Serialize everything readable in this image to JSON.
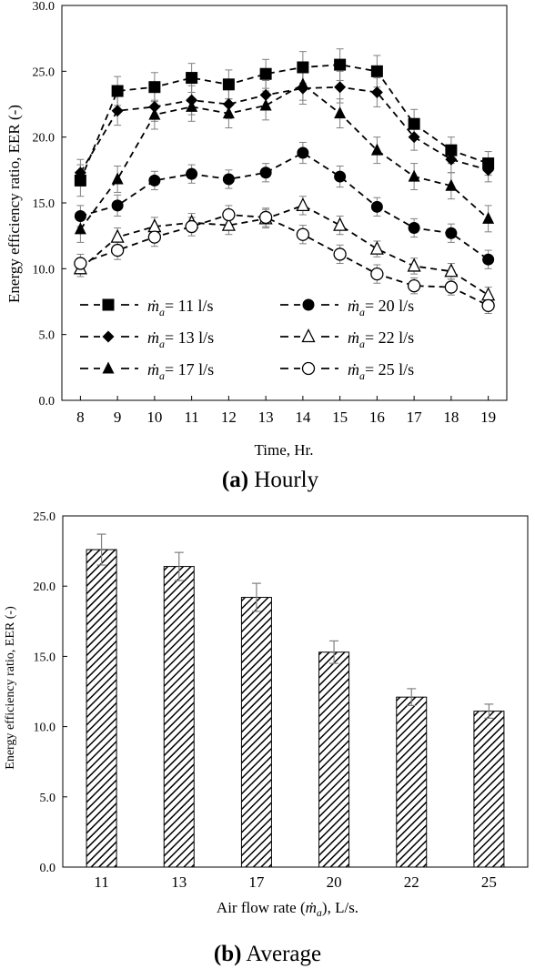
{
  "chart_data": [
    {
      "type": "line",
      "panel": "a",
      "caption_tag": "(a)",
      "caption_text": "Hourly",
      "xlabel": "Time, Hr.",
      "ylabel": "Energy efficiency ratio, EER (-)",
      "x": [
        8,
        9,
        10,
        11,
        12,
        13,
        14,
        15,
        16,
        17,
        18,
        19
      ],
      "xlim": [
        7.5,
        19.5
      ],
      "ylim": [
        0,
        30
      ],
      "y_ticks": [
        "0.0",
        "5.0",
        "10.0",
        "15.0",
        "20.0",
        "25.0",
        "30.0"
      ],
      "x_ticks": [
        "8",
        "9",
        "10",
        "11",
        "12",
        "13",
        "14",
        "15",
        "16",
        "17",
        "18",
        "19"
      ],
      "grid": false,
      "legend_position": "lower-center",
      "series": [
        {
          "name": "= 11 l/s",
          "marker": "square",
          "values": [
            16.7,
            23.5,
            23.8,
            24.5,
            24.0,
            24.8,
            25.3,
            25.5,
            25.0,
            21.0,
            19.0,
            18.0
          ],
          "error": [
            1.2,
            1.1,
            1.1,
            1.1,
            1.1,
            1.1,
            1.2,
            1.2,
            1.2,
            1.1,
            1.0,
            0.9
          ]
        },
        {
          "name": "= 13 l/s",
          "marker": "diamond",
          "values": [
            17.3,
            22.0,
            22.3,
            22.8,
            22.5,
            23.2,
            23.7,
            23.8,
            23.4,
            20.0,
            18.3,
            17.5
          ],
          "error": [
            1.0,
            1.1,
            1.1,
            1.1,
            1.1,
            1.1,
            1.2,
            1.2,
            1.1,
            1.0,
            1.0,
            0.9
          ]
        },
        {
          "name": "= 17 l/s",
          "marker": "triangle",
          "values": [
            13.0,
            16.8,
            21.7,
            22.3,
            21.8,
            22.4,
            24.0,
            21.8,
            19.0,
            17.0,
            16.3,
            13.8
          ],
          "error": [
            1.0,
            1.0,
            1.1,
            1.1,
            1.1,
            1.1,
            1.2,
            1.1,
            1.0,
            1.0,
            1.0,
            1.0
          ]
        },
        {
          "name": "= 20 l/s",
          "marker": "circle",
          "values": [
            14.0,
            14.8,
            16.7,
            17.2,
            16.8,
            17.3,
            18.8,
            17.0,
            14.7,
            13.1,
            12.7,
            10.7
          ],
          "error": [
            0.8,
            0.8,
            0.7,
            0.7,
            0.7,
            0.7,
            0.8,
            0.8,
            0.7,
            0.7,
            0.7,
            0.7
          ]
        },
        {
          "name": "= 22 l/s",
          "marker": "triangle-open",
          "values": [
            10.0,
            12.4,
            13.2,
            13.5,
            13.3,
            13.8,
            14.8,
            13.3,
            11.5,
            10.2,
            9.8,
            8.0
          ],
          "error": [
            0.6,
            0.7,
            0.7,
            0.7,
            0.7,
            0.7,
            0.7,
            0.7,
            0.6,
            0.6,
            0.6,
            0.6
          ]
        },
        {
          "name": "= 25 l/s",
          "marker": "circle-open",
          "values": [
            10.4,
            11.4,
            12.4,
            13.2,
            14.1,
            13.9,
            12.6,
            11.1,
            9.6,
            8.7,
            8.6,
            7.2
          ],
          "error": [
            0.7,
            0.7,
            0.7,
            0.7,
            0.7,
            0.7,
            0.7,
            0.7,
            0.7,
            0.6,
            0.6,
            0.6
          ]
        }
      ]
    },
    {
      "type": "bar",
      "panel": "b",
      "caption_tag": "(b)",
      "caption_text": "Average",
      "xlabel_pre": "Air flow rate (",
      "xlabel_post": "), L/s.",
      "ylabel": "Energy efficiency ratio, EER (-)",
      "categories": [
        "11",
        "13",
        "17",
        "20",
        "22",
        "25"
      ],
      "values": [
        22.6,
        21.4,
        19.2,
        15.3,
        12.1,
        11.1
      ],
      "error": [
        1.1,
        1.0,
        1.0,
        0.8,
        0.6,
        0.5
      ],
      "ylim": [
        0,
        25
      ],
      "y_ticks": [
        "0.0",
        "5.0",
        "10.0",
        "15.0",
        "20.0",
        "25.0"
      ],
      "grid": false,
      "fill": "diagonal-hatch"
    }
  ],
  "colors": {
    "ink": "#000000",
    "error_bar": "#808080",
    "background": "#ffffff"
  },
  "symbol": {
    "mdot": "ṁ",
    "sub": "a"
  }
}
